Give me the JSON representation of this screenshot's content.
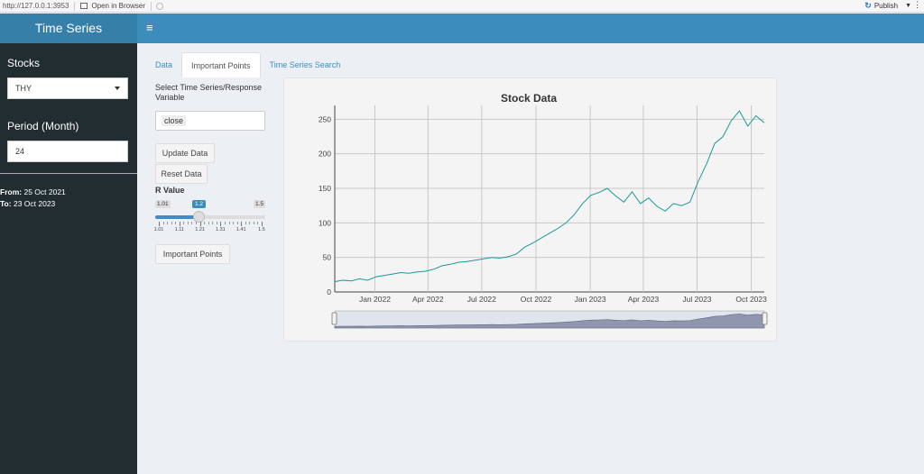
{
  "browser": {
    "url": "http://127.0.0.1:3953",
    "open_in_browser": "Open in Browser",
    "publish": "Publish"
  },
  "header": {
    "title": "Time Series",
    "toggle": "≡"
  },
  "sidebar": {
    "stocks_label": "Stocks",
    "stocks_value": "THY",
    "period_label": "Period (Month)",
    "period_value": "24",
    "from_label": "From:",
    "from_value": "25 Oct 2021",
    "to_label": "To:",
    "to_value": "23 Oct 2023"
  },
  "tabs": [
    {
      "label": "Data"
    },
    {
      "label": "Important Points"
    },
    {
      "label": "Time Series Search"
    }
  ],
  "controls": {
    "response_label": "Select Time Series/Response Variable",
    "response_value": "close",
    "update_button": "Update Data",
    "reset_button": "Reset Data",
    "r_label": "R Value",
    "r_min": "1.01",
    "r_max": "1.5",
    "r_value": "1.2",
    "r_ticks": [
      "1.01",
      "1.11",
      "1.21",
      "1.31",
      "1.41",
      "1.5"
    ],
    "important_button": "Important Points"
  },
  "chart_data": {
    "type": "line",
    "title": "Stock Data",
    "xlabel": "",
    "ylabel": "",
    "ylim": [
      0,
      270
    ],
    "yticks": [
      0,
      50,
      100,
      150,
      200,
      250
    ],
    "xticks": [
      "Jan 2022",
      "Apr 2022",
      "Jul 2022",
      "Oct 2022",
      "Jan 2023",
      "Apr 2023",
      "Jul 2023",
      "Oct 2023"
    ],
    "xrange": [
      "2021-10-25",
      "2023-10-23"
    ],
    "grid": true,
    "rangeslider": true,
    "line_color": "#1a9a96",
    "series": [
      {
        "x": [
          "2021-10-25",
          "2021-11-08",
          "2021-11-22",
          "2021-12-06",
          "2021-12-20",
          "2022-01-03",
          "2022-01-17",
          "2022-01-31",
          "2022-02-14",
          "2022-02-28",
          "2022-03-14",
          "2022-03-28",
          "2022-04-11",
          "2022-04-25",
          "2022-05-09",
          "2022-05-23",
          "2022-06-06",
          "2022-06-20",
          "2022-07-04",
          "2022-07-18",
          "2022-08-01",
          "2022-08-15",
          "2022-08-29",
          "2022-09-12",
          "2022-09-26",
          "2022-10-10",
          "2022-10-24",
          "2022-11-07",
          "2022-11-21",
          "2022-12-05",
          "2022-12-19",
          "2023-01-02",
          "2023-01-16",
          "2023-01-30",
          "2023-02-13",
          "2023-02-27",
          "2023-03-13",
          "2023-03-27",
          "2023-04-10",
          "2023-04-24",
          "2023-05-08",
          "2023-05-22",
          "2023-06-05",
          "2023-06-19",
          "2023-07-03",
          "2023-07-17",
          "2023-07-31",
          "2023-08-14",
          "2023-08-28",
          "2023-09-11",
          "2023-09-25",
          "2023-10-09",
          "2023-10-23"
        ],
        "y": [
          15,
          17,
          16,
          19,
          17,
          22,
          24,
          26,
          28,
          27,
          29,
          30,
          33,
          38,
          40,
          43,
          44,
          46,
          48,
          50,
          49,
          51,
          55,
          65,
          71,
          78,
          85,
          92,
          100,
          112,
          128,
          140,
          144,
          150,
          139,
          130,
          145,
          128,
          136,
          124,
          117,
          128,
          125,
          130,
          160,
          185,
          215,
          225,
          248,
          262,
          240,
          255,
          245
        ]
      }
    ]
  }
}
